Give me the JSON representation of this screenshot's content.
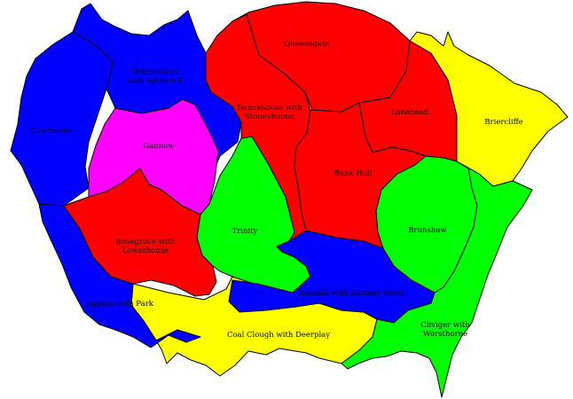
{
  "colors": {
    "red": "#ff0000",
    "blue": "#0000ff",
    "green": "#00ff00",
    "yellow": "#ffff00",
    "magenta": "#ff00ff",
    "border": "#000000",
    "background": "#ffffff"
  },
  "wards": [
    {
      "id": "queensgate",
      "label": "Queensgate",
      "color": "red"
    },
    {
      "id": "daneshouse",
      "label": "Daneshouse with Stoneyholme",
      "lines": [
        "Daneshouse with",
        "Stoneyholme"
      ],
      "color": "red"
    },
    {
      "id": "lanehead",
      "label": "Lanehead",
      "color": "red"
    },
    {
      "id": "bank-hall",
      "label": "Bank Hall",
      "color": "red"
    },
    {
      "id": "rosegrove",
      "label": "Rosegrove with Lowerhouse",
      "lines": [
        "Rosegrove with",
        "Lowerhouse"
      ],
      "color": "red"
    },
    {
      "id": "whittlefield",
      "label": "Whittlefield with Ightenhill",
      "lines": [
        "Whittlefield",
        "with Ightenhill"
      ],
      "color": "blue"
    },
    {
      "id": "gawthorpe",
      "label": "Gawthorpe",
      "color": "blue"
    },
    {
      "id": "hapton",
      "label": "Hapton with Park",
      "color": "blue"
    },
    {
      "id": "rosehill",
      "label": "Rosehill with Burnley Wood",
      "color": "blue"
    },
    {
      "id": "gannow",
      "label": "Gannow",
      "color": "magenta"
    },
    {
      "id": "trinity",
      "label": "Trinity",
      "color": "green"
    },
    {
      "id": "brunshaw",
      "label": "Brunshaw",
      "color": "green"
    },
    {
      "id": "cliviger",
      "label": "Cliviger with Worsthorne",
      "lines": [
        "Cliviger with",
        "Worsthorne"
      ],
      "color": "green"
    },
    {
      "id": "briercliffe",
      "label": "Briercliffe",
      "color": "yellow"
    },
    {
      "id": "coal-clough",
      "label": "Coal Clough with Deerplay",
      "color": "yellow"
    }
  ]
}
